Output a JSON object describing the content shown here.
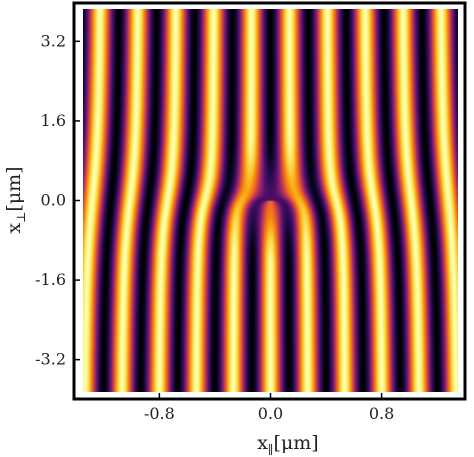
{
  "chart_data": {
    "type": "heatmap",
    "title": "",
    "colormap": "inferno",
    "grid": false,
    "xlabel": {
      "main": "x",
      "subscript": "∥",
      "unit": "[μm]"
    },
    "ylabel": {
      "main": "x",
      "subscript": "⊥",
      "unit": "[μm]"
    },
    "xlim": [
      -1.35,
      1.35
    ],
    "ylim": [
      -3.85,
      3.85
    ],
    "x_ticks": [
      {
        "value": -0.8,
        "label": "-0.8"
      },
      {
        "value": 0.0,
        "label": "0.0"
      },
      {
        "value": 0.8,
        "label": "0.8"
      }
    ],
    "y_ticks": [
      {
        "value": 3.2,
        "label": "3.2"
      },
      {
        "value": 1.6,
        "label": "1.6"
      },
      {
        "value": 0.0,
        "label": "0.0"
      },
      {
        "value": -1.6,
        "label": "-1.6"
      },
      {
        "value": -3.2,
        "label": "-3.2"
      }
    ],
    "pattern": {
      "description_of_field": "vertical interference fringes with a fork (edge dislocation) at the origin",
      "fringe_period_um": 0.27,
      "dislocation_position_um": [
        0.0,
        0.0
      ],
      "topological_charge": 1
    }
  }
}
